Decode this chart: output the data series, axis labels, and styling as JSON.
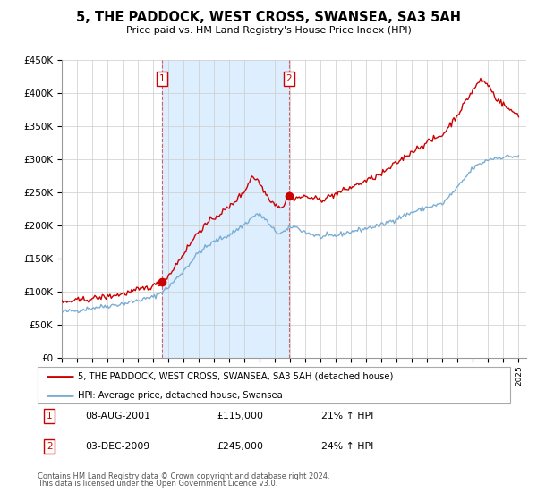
{
  "title": "5, THE PADDOCK, WEST CROSS, SWANSEA, SA3 5AH",
  "subtitle": "Price paid vs. HM Land Registry's House Price Index (HPI)",
  "ylim": [
    0,
    450000
  ],
  "yticks": [
    0,
    50000,
    100000,
    150000,
    200000,
    250000,
    300000,
    350000,
    400000,
    450000
  ],
  "ytick_labels": [
    "£0",
    "£50K",
    "£100K",
    "£150K",
    "£200K",
    "£250K",
    "£300K",
    "£350K",
    "£400K",
    "£450K"
  ],
  "xlim_start": 1995.0,
  "xlim_end": 2025.5,
  "sale1_date": 2001.6,
  "sale1_price": 115000,
  "sale2_date": 2009.92,
  "sale2_price": 245000,
  "hpi_color": "#7aadd4",
  "price_color": "#cc0000",
  "shade_color": "#ddeeff",
  "annotation1_date_str": "08-AUG-2001",
  "annotation1_price_str": "£115,000",
  "annotation1_hpi_str": "21% ↑ HPI",
  "annotation2_date_str": "03-DEC-2009",
  "annotation2_price_str": "£245,000",
  "annotation2_hpi_str": "24% ↑ HPI",
  "legend_label1": "5, THE PADDOCK, WEST CROSS, SWANSEA, SA3 5AH (detached house)",
  "legend_label2": "HPI: Average price, detached house, Swansea",
  "footer1": "Contains HM Land Registry data © Crown copyright and database right 2024.",
  "footer2": "This data is licensed under the Open Government Licence v3.0."
}
